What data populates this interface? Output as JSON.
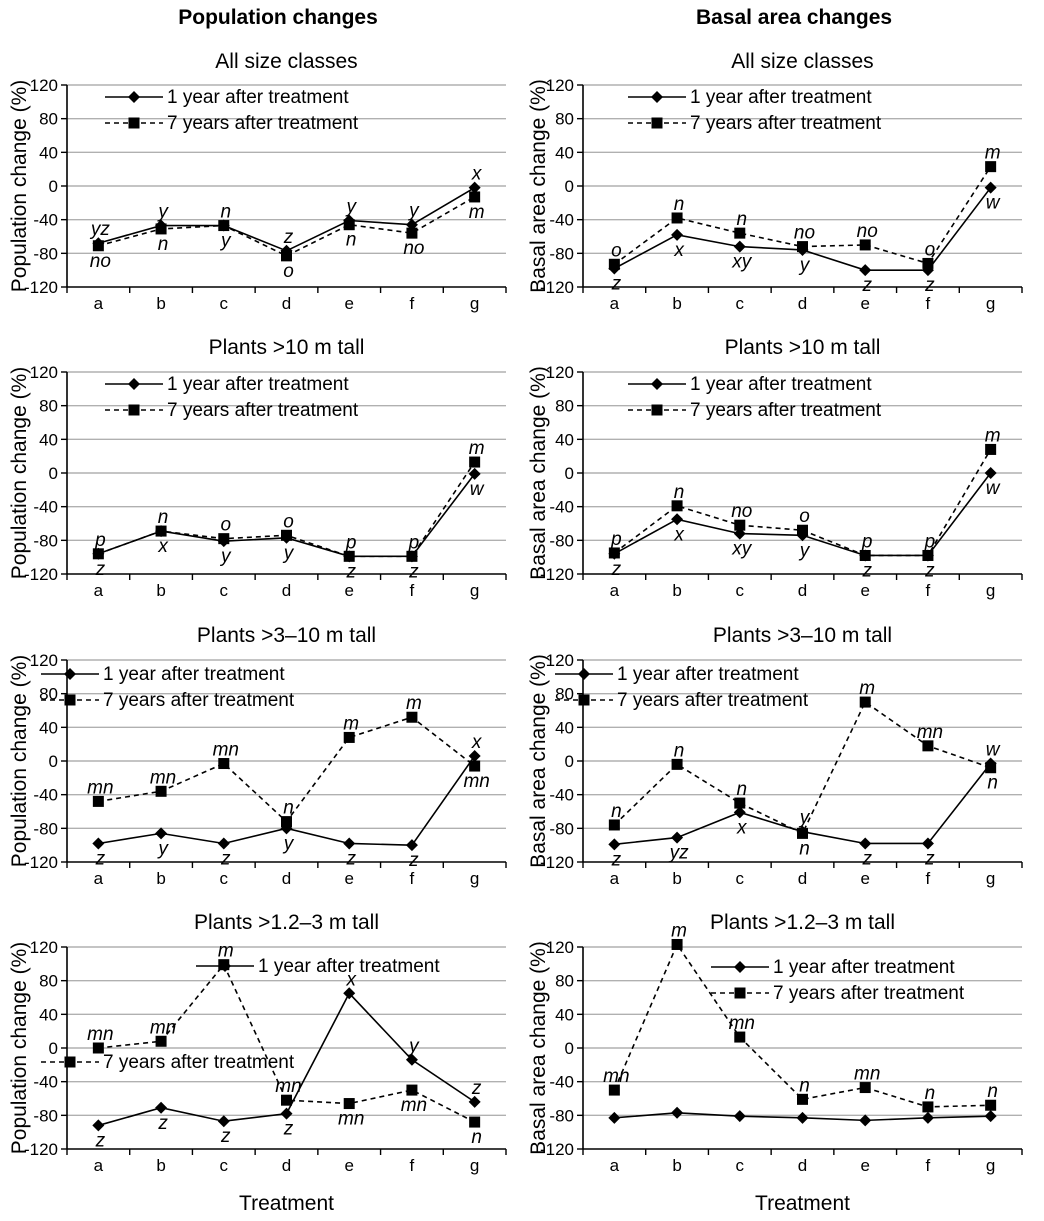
{
  "headers": {
    "left": "Population changes",
    "right": "Basal area changes"
  },
  "x_axis_label": "Treatment",
  "colors": {
    "series1": "#000000",
    "series2": "#000000",
    "grid": "#b0b0b0"
  },
  "chart_data": [
    {
      "type": "line",
      "column": "left",
      "row": 0,
      "title": "All size classes",
      "ylabel": "Population change (%)",
      "categories": [
        "a",
        "b",
        "c",
        "d",
        "e",
        "f",
        "g"
      ],
      "ylim": [
        -120,
        120
      ],
      "yticks": [
        -120,
        -80,
        -40,
        0,
        40,
        80,
        120
      ],
      "grid": true,
      "legend": "top-center",
      "series": [
        {
          "name": "1 year after treatment",
          "style": "solid",
          "marker": "diamond",
          "values": [
            -68,
            -47,
            -47,
            -77,
            -41,
            -46,
            -2
          ],
          "labels": [
            "yz",
            "y",
            "y",
            "z",
            "y",
            "y",
            "x"
          ]
        },
        {
          "name": "7 years after treatment",
          "style": "dashed",
          "marker": "square",
          "values": [
            -71,
            -51,
            -47,
            -83,
            -46,
            -56,
            -13
          ],
          "labels": [
            "no",
            "n",
            "n",
            "o",
            "n",
            "no",
            "m"
          ]
        }
      ]
    },
    {
      "type": "line",
      "column": "right",
      "row": 0,
      "title": "All size classes",
      "ylabel": "Basal area change (%)",
      "categories": [
        "a",
        "b",
        "c",
        "d",
        "e",
        "f",
        "g"
      ],
      "ylim": [
        -120,
        120
      ],
      "yticks": [
        -120,
        -80,
        -40,
        0,
        40,
        80,
        120
      ],
      "grid": true,
      "legend": "top-center",
      "series": [
        {
          "name": "1 year after treatment",
          "style": "solid",
          "marker": "diamond",
          "values": [
            -98,
            -58,
            -72,
            -76,
            -100,
            -100,
            -2
          ],
          "labels": [
            "z",
            "x",
            "xy",
            "y",
            "z",
            "z",
            "w"
          ]
        },
        {
          "name": "7 years after treatment",
          "style": "dashed",
          "marker": "square",
          "values": [
            -93,
            -38,
            -56,
            -72,
            -70,
            -92,
            23
          ],
          "labels": [
            "o",
            "n",
            "n",
            "no",
            "no",
            "o",
            "m"
          ]
        }
      ]
    },
    {
      "type": "line",
      "column": "left",
      "row": 1,
      "title": "Plants >10 m tall",
      "ylabel": "Population change (%)",
      "categories": [
        "a",
        "b",
        "c",
        "d",
        "e",
        "f",
        "g"
      ],
      "ylim": [
        -120,
        120
      ],
      "yticks": [
        -120,
        -80,
        -40,
        0,
        40,
        80,
        120
      ],
      "grid": true,
      "legend": "top-center",
      "series": [
        {
          "name": "1 year after treatment",
          "style": "solid",
          "marker": "diamond",
          "values": [
            -96,
            -69,
            -81,
            -77,
            -99,
            -99,
            -1
          ],
          "labels": [
            "z",
            "x",
            "y",
            "y",
            "z",
            "z",
            "w"
          ]
        },
        {
          "name": "7 years after treatment",
          "style": "dashed",
          "marker": "square",
          "values": [
            -96,
            -69,
            -78,
            -74,
            -99,
            -99,
            13
          ],
          "labels": [
            "p",
            "n",
            "o",
            "o",
            "p",
            "p",
            "m"
          ]
        }
      ]
    },
    {
      "type": "line",
      "column": "right",
      "row": 1,
      "title": "Plants >10 m tall",
      "ylabel": "Basal area change (%)",
      "categories": [
        "a",
        "b",
        "c",
        "d",
        "e",
        "f",
        "g"
      ],
      "ylim": [
        -120,
        120
      ],
      "yticks": [
        -120,
        -80,
        -40,
        0,
        40,
        80,
        120
      ],
      "grid": true,
      "legend": "top-center",
      "series": [
        {
          "name": "1 year after treatment",
          "style": "solid",
          "marker": "diamond",
          "values": [
            -96,
            -55,
            -72,
            -74,
            -98,
            -98,
            0
          ],
          "labels": [
            "z",
            "x",
            "xy",
            "y",
            "z",
            "z",
            "w"
          ]
        },
        {
          "name": "7 years after treatment",
          "style": "dashed",
          "marker": "square",
          "values": [
            -95,
            -39,
            -62,
            -68,
            -98,
            -98,
            28
          ],
          "labels": [
            "p",
            "n",
            "no",
            "o",
            "p",
            "p",
            "m"
          ]
        }
      ]
    },
    {
      "type": "line",
      "column": "left",
      "row": 2,
      "title": "Plants >3–10 m tall",
      "ylabel": "Population change (%)",
      "categories": [
        "a",
        "b",
        "c",
        "d",
        "e",
        "f",
        "g"
      ],
      "ylim": [
        -120,
        120
      ],
      "yticks": [
        -120,
        -80,
        -40,
        0,
        40,
        80,
        120
      ],
      "grid": true,
      "legend": "top-left",
      "series": [
        {
          "name": "1 year after treatment",
          "style": "solid",
          "marker": "diamond",
          "values": [
            -98,
            -86,
            -98,
            -80,
            -98,
            -100,
            6
          ],
          "labels": [
            "z",
            "y",
            "z",
            "y",
            "z",
            "z",
            "x"
          ]
        },
        {
          "name": "7 years after treatment",
          "style": "dashed",
          "marker": "square",
          "values": [
            -48,
            -36,
            -3,
            -72,
            28,
            52,
            -6
          ],
          "labels": [
            "mn",
            "mn",
            "mn",
            "n",
            "m",
            "m",
            "mn"
          ]
        }
      ]
    },
    {
      "type": "line",
      "column": "right",
      "row": 2,
      "title": "Plants >3–10 m tall",
      "ylabel": "Basal area change (%)",
      "categories": [
        "a",
        "b",
        "c",
        "d",
        "e",
        "f",
        "g"
      ],
      "ylim": [
        -120,
        120
      ],
      "yticks": [
        -120,
        -80,
        -40,
        0,
        40,
        80,
        120
      ],
      "grid": true,
      "legend": "top-left",
      "series": [
        {
          "name": "1 year after treatment",
          "style": "solid",
          "marker": "diamond",
          "values": [
            -99,
            -91,
            -61,
            -84,
            -98,
            -98,
            -3
          ],
          "labels": [
            "z",
            "yz",
            "x",
            "y",
            "z",
            "z",
            "w"
          ]
        },
        {
          "name": "7 years after treatment",
          "style": "dashed",
          "marker": "square",
          "values": [
            -76,
            -4,
            -50,
            -86,
            70,
            18,
            -8
          ],
          "labels": [
            "n",
            "n",
            "n",
            "n",
            "m",
            "mn",
            "n"
          ]
        }
      ]
    },
    {
      "type": "line",
      "column": "left",
      "row": 3,
      "title": "Plants >1.2–3 m tall",
      "ylabel": "Population change (%)",
      "categories": [
        "a",
        "b",
        "c",
        "d",
        "e",
        "f",
        "g"
      ],
      "ylim": [
        -120,
        120
      ],
      "yticks": [
        -120,
        -80,
        -40,
        0,
        40,
        80,
        120
      ],
      "grid": true,
      "legend": "split",
      "series": [
        {
          "name": "1 year after treatment",
          "style": "solid",
          "marker": "diamond",
          "values": [
            -92,
            -71,
            -87,
            -78,
            65,
            -14,
            -64
          ],
          "labels": [
            "z",
            "z",
            "z",
            "z",
            "x",
            "y",
            "z"
          ]
        },
        {
          "name": "7 years after treatment",
          "style": "dashed",
          "marker": "square",
          "values": [
            0,
            8,
            99,
            -62,
            -66,
            -50,
            -88
          ],
          "labels": [
            "mn",
            "mn",
            "m",
            "mn",
            "mn",
            "mn",
            "n"
          ]
        }
      ]
    },
    {
      "type": "line",
      "column": "right",
      "row": 3,
      "title": "Plants >1.2–3 m tall",
      "ylabel": "Basal area change (%)",
      "categories": [
        "a",
        "b",
        "c",
        "d",
        "e",
        "f",
        "g"
      ],
      "ylim": [
        -120,
        120
      ],
      "yticks": [
        -120,
        -80,
        -40,
        0,
        40,
        80,
        120
      ],
      "grid": true,
      "legend": "top-right",
      "series": [
        {
          "name": "1 year after treatment",
          "style": "solid",
          "marker": "diamond",
          "values": [
            -83,
            -77,
            -81,
            -83,
            -86,
            -83,
            -81
          ],
          "labels": [
            "",
            "",
            "",
            "",
            "",
            "",
            ""
          ]
        },
        {
          "name": "7 years after treatment",
          "style": "dashed",
          "marker": "square",
          "values": [
            -50,
            123,
            13,
            -61,
            -47,
            -70,
            -68
          ],
          "labels": [
            "mn",
            "m",
            "mn",
            "n",
            "mn",
            "n",
            "n"
          ]
        }
      ]
    }
  ]
}
